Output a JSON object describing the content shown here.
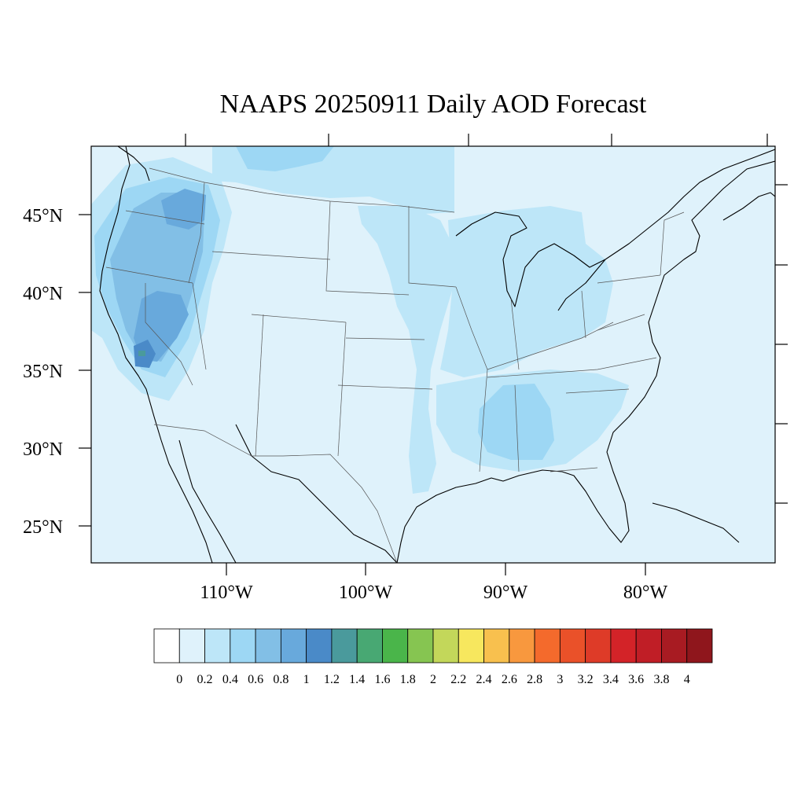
{
  "title": "NAAPS 20250911 Daily AOD Forecast",
  "map": {
    "background_color": "#dff2fb",
    "land_outline_color": "#000000",
    "lat_labels": [
      "45°N",
      "40°N",
      "35°N",
      "30°N",
      "25°N"
    ],
    "lon_labels": [
      "110°W",
      "100°W",
      "90°W",
      "80°W"
    ]
  },
  "colorbar": {
    "tick_labels": [
      "0",
      "0.2",
      "0.4",
      "0.6",
      "0.8",
      "1",
      "1.2",
      "1.4",
      "1.6",
      "1.8",
      "2",
      "2.2",
      "2.4",
      "2.6",
      "2.8",
      "3",
      "3.2",
      "3.4",
      "3.6",
      "3.8",
      "4"
    ],
    "colors": [
      "#ffffff",
      "#dff2fb",
      "#bde6f8",
      "#9dd7f4",
      "#82bfe6",
      "#68a9dc",
      "#4a8ac8",
      "#4a9a9c",
      "#48a873",
      "#4ab54a",
      "#86c551",
      "#c3d75a",
      "#f7e75e",
      "#f8c04e",
      "#f8983e",
      "#f46a2c",
      "#ea5129",
      "#de3b28",
      "#d32328",
      "#c01e26",
      "#a81b22",
      "#8f161c"
    ]
  }
}
